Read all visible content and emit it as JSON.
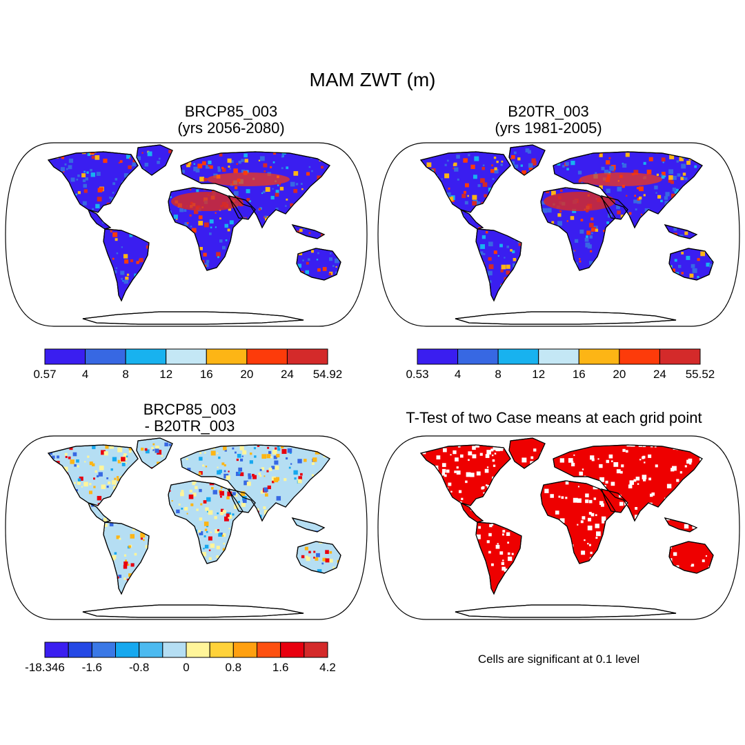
{
  "figure": {
    "title": "MAM ZWT (m)"
  },
  "panels": [
    {
      "id": "future",
      "title_line1": "BRCP85_003",
      "title_line2": "(yrs 2056-2080)"
    },
    {
      "id": "historical",
      "title_line1": "B20TR_003",
      "title_line2": "(yrs 1981-2005)"
    },
    {
      "id": "difference",
      "title_line1": "BRCP85_003",
      "title_line2": "- B20TR_003"
    },
    {
      "id": "ttest",
      "title_line1": "T-Test of two Case means at each grid point"
    }
  ],
  "colorbars": {
    "future": {
      "colors": [
        "#3a1ef0",
        "#3768e3",
        "#18b2ef",
        "#c4e7f5",
        "#fdb515",
        "#fd3b0a",
        "#d42a2a"
      ],
      "labels": [
        "0.57",
        "4",
        "8",
        "12",
        "16",
        "20",
        "24",
        "54.92"
      ]
    },
    "historical": {
      "colors": [
        "#3a1ef0",
        "#3768e3",
        "#18b2ef",
        "#c4e7f5",
        "#fdb515",
        "#fd3b0a",
        "#d42a2a"
      ],
      "labels": [
        "0.53",
        "4",
        "8",
        "12",
        "16",
        "20",
        "24",
        "55.52"
      ]
    },
    "difference": {
      "colors": [
        "#3a1ef0",
        "#2448e5",
        "#3a78e6",
        "#16a8ef",
        "#4cbaf0",
        "#b5def3",
        "#fff59a",
        "#ffd23a",
        "#ffa010",
        "#fd5010",
        "#e8000f",
        "#d42a2a"
      ],
      "labels": [
        "-18.346",
        "-1.6",
        "-0.8",
        "0",
        "0.8",
        "1.6",
        "4.2"
      ]
    }
  },
  "ttest_note": "Cells are significant at 0.1 level",
  "map_colors": {
    "ocean": "#ffffff",
    "future_base": "#3a1ef0",
    "future_mid": "#3768e3",
    "future_hot": "#d42a2a",
    "future_warm": "#fd3b0a",
    "diff_base": "#b5def3",
    "diff_pos": "#fff59a",
    "diff_neg": "#3768e3",
    "diff_hot": "#e8000f",
    "sig": "#ee0000"
  }
}
